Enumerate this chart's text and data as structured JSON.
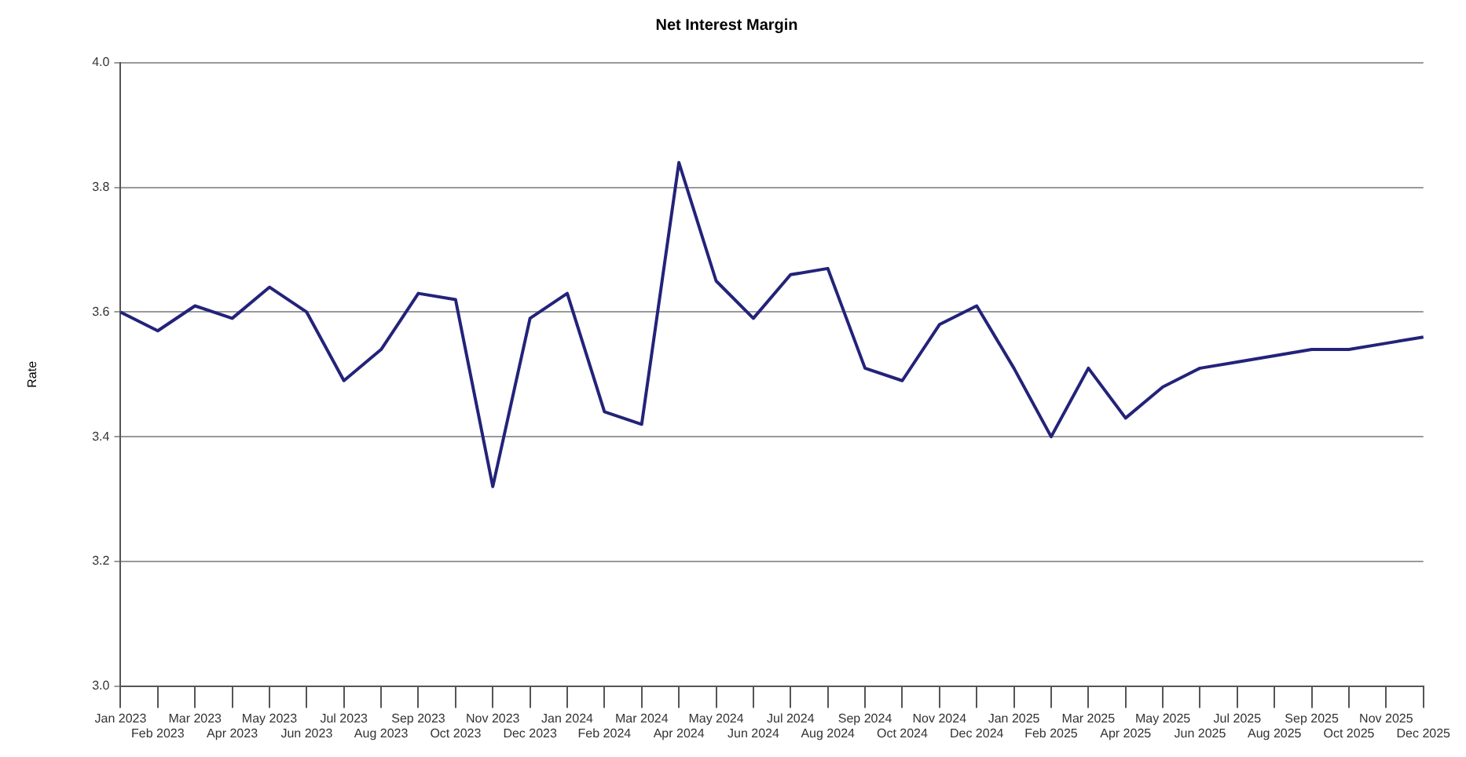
{
  "chart_data": {
    "type": "line",
    "title": "Net Interest Margin",
    "ylabel": "Rate",
    "categories": [
      "Jan 2023",
      "Feb 2023",
      "Mar 2023",
      "Apr 2023",
      "May 2023",
      "Jun 2023",
      "Jul 2023",
      "Aug 2023",
      "Sep 2023",
      "Oct 2023",
      "Nov 2023",
      "Dec 2023",
      "Jan 2024",
      "Feb 2024",
      "Mar 2024",
      "Apr 2024",
      "May 2024",
      "Jun 2024",
      "Jul 2024",
      "Aug 2024",
      "Sep 2024",
      "Oct 2024",
      "Nov 2024",
      "Dec 2024",
      "Jan 2025",
      "Feb 2025",
      "Mar 2025",
      "Apr 2025",
      "May 2025",
      "Jun 2025",
      "Jul 2025",
      "Aug 2025",
      "Sep 2025",
      "Oct 2025",
      "Nov 2025",
      "Dec 2025"
    ],
    "series": [
      {
        "color": "#23237a",
        "values": [
          3.6,
          3.57,
          3.61,
          3.59,
          3.64,
          3.6,
          3.49,
          3.54,
          3.63,
          3.62,
          3.32,
          3.59,
          3.63,
          3.44,
          3.42,
          3.84,
          3.65,
          3.59,
          3.66,
          3.67,
          3.51,
          3.49,
          3.58,
          3.61,
          3.51,
          3.4,
          3.51,
          3.43,
          3.48,
          3.51,
          3.52,
          3.53,
          3.54,
          3.54,
          3.55,
          3.56
        ]
      }
    ],
    "ylim": [
      3.0,
      4.0
    ],
    "yticks": [
      {
        "value": 3.0,
        "label": "3.0"
      },
      3.2,
      3.4,
      3.6,
      3.8,
      {
        "value": 4.0,
        "label": "4.0"
      }
    ],
    "grid": "y",
    "legend": false,
    "marker": "none",
    "line_style": "solid"
  }
}
